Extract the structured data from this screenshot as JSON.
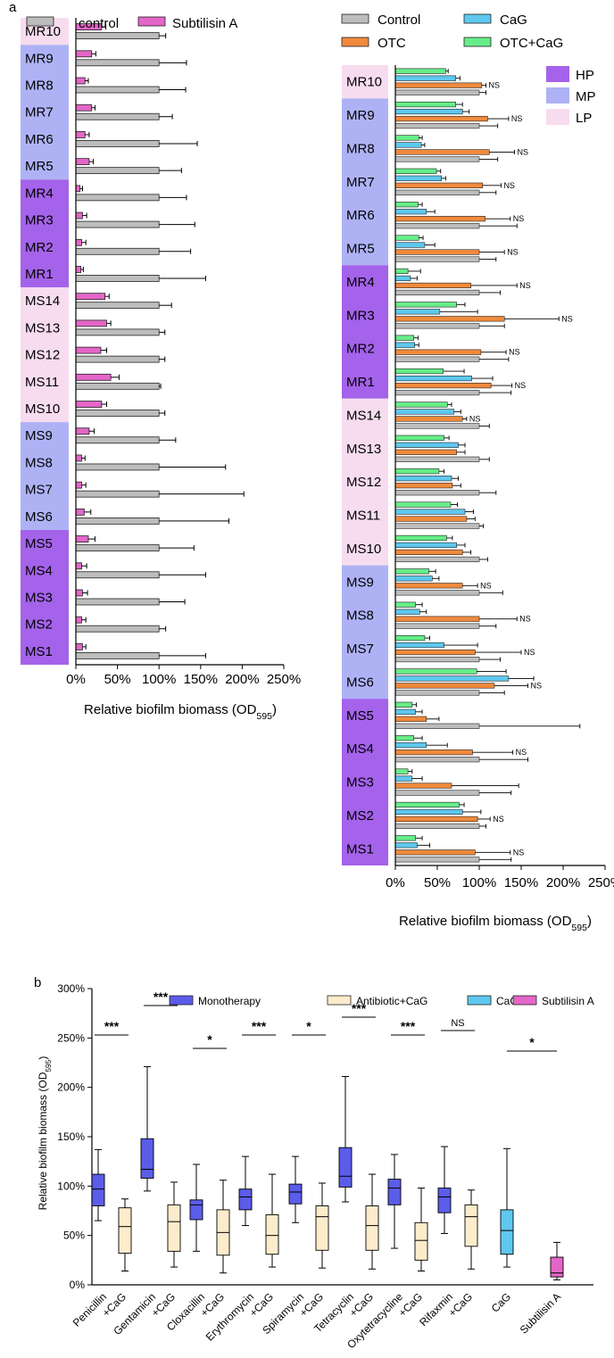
{
  "panel_labels": {
    "a": "a",
    "b": "b"
  },
  "colors": {
    "control_gray": "#bdbdbd",
    "subtilisin_pink": "#e466c8",
    "otc_orange": "#f08a3c",
    "cag_blue": "#5ec8ee",
    "otccag_green": "#66ee88",
    "HP": "#a463ea",
    "MP": "#aeb2f5",
    "LP": "#f7dcef",
    "mono_box": "#5b5ce8",
    "combo_box": "#fdeccb"
  },
  "chart_data": [
    {
      "id": "a-left",
      "type": "bar",
      "orientation": "horizontal",
      "legend": [
        "control",
        "Subtilisin A"
      ],
      "legend_placement": "top",
      "categories": [
        "MR10",
        "MR9",
        "MR8",
        "MR7",
        "MR6",
        "MR5",
        "MR4",
        "MR3",
        "MR2",
        "MR1",
        "MS14",
        "MS13",
        "MS12",
        "MS11",
        "MS10",
        "MS9",
        "MS8",
        "MS7",
        "MS6",
        "MS5",
        "MS4",
        "MS3",
        "MS2",
        "MS1"
      ],
      "groups": [
        "LP",
        "MP",
        "MP",
        "MP",
        "MP",
        "MP",
        "HP",
        "HP",
        "HP",
        "HP",
        "LP",
        "LP",
        "LP",
        "LP",
        "LP",
        "MP",
        "MP",
        "MP",
        "MP",
        "HP",
        "HP",
        "HP",
        "HP",
        "HP"
      ],
      "series": [
        {
          "name": "control",
          "values": [
            100,
            100,
            100,
            100,
            100,
            100,
            100,
            100,
            100,
            100,
            100,
            100,
            100,
            100,
            100,
            100,
            100,
            100,
            100,
            100,
            100,
            100,
            100,
            100
          ],
          "errors": [
            8,
            33,
            32,
            16,
            46,
            27,
            33,
            43,
            38,
            56,
            15,
            7,
            7,
            2,
            7,
            20,
            80,
            102,
            84,
            42,
            56,
            31,
            8,
            56
          ]
        },
        {
          "name": "Subtilisin A",
          "values": [
            31,
            19,
            11,
            19,
            11,
            16,
            5,
            8,
            7,
            6,
            35,
            37,
            30,
            42,
            31,
            16,
            7,
            7,
            10,
            15,
            7,
            8,
            7,
            8
          ],
          "errors": [
            5,
            5,
            4,
            4,
            5,
            5,
            3,
            5,
            5,
            3,
            5,
            5,
            7,
            10,
            6,
            6,
            4,
            5,
            8,
            8,
            6,
            6,
            5,
            4
          ]
        }
      ],
      "xlabel": "Relative biofilm biomass (OD",
      "xlabel_sub": "595",
      "xlabel_end": ")",
      "xticks": [
        "0%",
        "50%",
        "100%",
        "150%",
        "200%",
        "250%"
      ],
      "xlim": [
        0,
        250
      ]
    },
    {
      "id": "a-right",
      "type": "bar",
      "orientation": "horizontal",
      "legend": [
        "Control",
        "CaG",
        "OTC",
        "OTC+CaG"
      ],
      "group_legend": [
        "HP",
        "MP",
        "LP"
      ],
      "categories": [
        "MR10",
        "MR9",
        "MR8",
        "MR7",
        "MR6",
        "MR5",
        "MR4",
        "MR3",
        "MR2",
        "MR1",
        "MS14",
        "MS13",
        "MS12",
        "MS11",
        "MS10",
        "MS9",
        "MS8",
        "MS7",
        "MS6",
        "MS5",
        "MS4",
        "MS3",
        "MS2",
        "MS1"
      ],
      "groups": [
        "LP",
        "MP",
        "MP",
        "MP",
        "MP",
        "MP",
        "HP",
        "HP",
        "HP",
        "HP",
        "LP",
        "LP",
        "LP",
        "LP",
        "LP",
        "MP",
        "MP",
        "MP",
        "MP",
        "HP",
        "HP",
        "HP",
        "HP",
        "HP"
      ],
      "series": [
        {
          "name": "Control",
          "values": [
            100,
            100,
            100,
            100,
            100,
            100,
            100,
            100,
            100,
            100,
            100,
            100,
            100,
            100,
            100,
            100,
            100,
            100,
            100,
            100,
            100,
            100,
            100,
            100
          ],
          "errors": [
            8,
            22,
            22,
            20,
            45,
            20,
            25,
            30,
            35,
            38,
            12,
            12,
            20,
            5,
            10,
            28,
            20,
            25,
            30,
            120,
            58,
            38,
            8,
            38
          ]
        },
        {
          "name": "OTC",
          "values": [
            103,
            110,
            112,
            104,
            107,
            100,
            90,
            130,
            102,
            114,
            80,
            73,
            68,
            85,
            80,
            80,
            100,
            95,
            118,
            37,
            92,
            67,
            98,
            95
          ],
          "errors": [
            5,
            25,
            30,
            22,
            30,
            30,
            55,
            65,
            30,
            25,
            5,
            10,
            10,
            10,
            10,
            18,
            45,
            55,
            40,
            15,
            48,
            80,
            15,
            42
          ]
        },
        {
          "name": "CaG",
          "values": [
            72,
            80,
            31,
            55,
            37,
            35,
            18,
            53,
            23,
            91,
            70,
            75,
            67,
            83,
            73,
            44,
            29,
            58,
            135,
            24,
            37,
            20,
            80,
            26
          ],
          "errors": [
            5,
            8,
            4,
            5,
            10,
            12,
            8,
            45,
            5,
            25,
            8,
            8,
            8,
            10,
            10,
            8,
            8,
            40,
            30,
            8,
            25,
            12,
            22,
            15
          ]
        },
        {
          "name": "OTC+CaG",
          "values": [
            60,
            72,
            28,
            49,
            27,
            28,
            15,
            73,
            22,
            57,
            62,
            58,
            52,
            66,
            61,
            40,
            24,
            35,
            97,
            20,
            22,
            15,
            76,
            24
          ],
          "errors": [
            3,
            8,
            4,
            5,
            5,
            5,
            15,
            10,
            5,
            25,
            5,
            6,
            6,
            8,
            7,
            8,
            8,
            6,
            35,
            5,
            10,
            5,
            6,
            8
          ]
        }
      ],
      "annotation": "NS",
      "ns_rows": [
        "MR10",
        "MR9",
        "MR8",
        "MR7",
        "MR6",
        "MR5",
        "MR4",
        "MR3",
        "MR2",
        "MR1",
        "MS14",
        "MS9",
        "MS8",
        "MS7",
        "MS6",
        "MS4",
        "MS2",
        "MS1"
      ],
      "xlabel": "Relative biofilm biomass (OD",
      "xlabel_sub": "595",
      "xlabel_end": ")",
      "xticks": [
        "0%",
        "50%",
        "100%",
        "150%",
        "200%",
        "250%"
      ],
      "xlim": [
        0,
        250
      ]
    },
    {
      "id": "b",
      "type": "box",
      "legend": [
        "Monotherapy",
        "Antibiotic+CaG",
        "CaG",
        "Subtilisin A"
      ],
      "legend_placement": "top",
      "ylabel": "Relative biofilm biomass (OD",
      "ylabel_sub": "595",
      "ylabel_end": ")",
      "yticks": [
        "0%",
        "50%",
        "100%",
        "150%",
        "200%",
        "250%",
        "300%"
      ],
      "ylim": [
        0,
        300
      ],
      "categories": [
        {
          "line1": "Penicillin",
          "line2": "+CaG",
          "sig": "***"
        },
        {
          "line1": "Gentamicin",
          "line2": "+CaG",
          "sig": "***"
        },
        {
          "line1": "Cloxacillin",
          "line2": "+CaG",
          "sig": "*"
        },
        {
          "line1": "Erythromycin",
          "line2": "+CaG",
          "sig": "***"
        },
        {
          "line1": "Spiramycin",
          "line2": "+CaG",
          "sig": "*"
        },
        {
          "line1": "Tetracyclin",
          "line2": "+CaG",
          "sig": "***"
        },
        {
          "line1": "Oxytetracycline",
          "line2": "+CaG",
          "sig": "***"
        },
        {
          "line1": "Rifaxmin",
          "line2": "+CaG",
          "sig": "NS"
        },
        {
          "line1": "CaG",
          "line2": "",
          "sig": ""
        },
        {
          "line1": "Subtilisin A",
          "line2": "",
          "sig": "*"
        }
      ],
      "boxes": [
        {
          "group": 0,
          "series": "Monotherapy",
          "min": 65,
          "q1": 80,
          "median": 97,
          "q3": 112,
          "max": 137
        },
        {
          "group": 0,
          "series": "Antibiotic+CaG",
          "min": 14,
          "q1": 32,
          "median": 59,
          "q3": 78,
          "max": 87
        },
        {
          "group": 1,
          "series": "Monotherapy",
          "min": 95,
          "q1": 108,
          "median": 117,
          "q3": 148,
          "max": 221
        },
        {
          "group": 1,
          "series": "Antibiotic+CaG",
          "min": 18,
          "q1": 34,
          "median": 64,
          "q3": 81,
          "max": 104
        },
        {
          "group": 2,
          "series": "Monotherapy",
          "min": 34,
          "q1": 66,
          "median": 81,
          "q3": 86,
          "max": 122
        },
        {
          "group": 2,
          "series": "Antibiotic+CaG",
          "min": 12,
          "q1": 30,
          "median": 53,
          "q3": 76,
          "max": 106
        },
        {
          "group": 3,
          "series": "Monotherapy",
          "min": 60,
          "q1": 76,
          "median": 89,
          "q3": 97,
          "max": 130
        },
        {
          "group": 3,
          "series": "Antibiotic+CaG",
          "min": 18,
          "q1": 31,
          "median": 50,
          "q3": 71,
          "max": 112
        },
        {
          "group": 4,
          "series": "Monotherapy",
          "min": 63,
          "q1": 82,
          "median": 94,
          "q3": 102,
          "max": 130
        },
        {
          "group": 4,
          "series": "Antibiotic+CaG",
          "min": 17,
          "q1": 35,
          "median": 69,
          "q3": 80,
          "max": 103
        },
        {
          "group": 5,
          "series": "Monotherapy",
          "min": 84,
          "q1": 99,
          "median": 110,
          "q3": 139,
          "max": 211
        },
        {
          "group": 5,
          "series": "Antibiotic+CaG",
          "min": 16,
          "q1": 35,
          "median": 60,
          "q3": 80,
          "max": 112
        },
        {
          "group": 6,
          "series": "Monotherapy",
          "min": 37,
          "q1": 81,
          "median": 98,
          "q3": 107,
          "max": 132
        },
        {
          "group": 6,
          "series": "Antibiotic+CaG",
          "min": 14,
          "q1": 25,
          "median": 45,
          "q3": 63,
          "max": 98
        },
        {
          "group": 7,
          "series": "Monotherapy",
          "min": 52,
          "q1": 73,
          "median": 89,
          "q3": 98,
          "max": 140
        },
        {
          "group": 7,
          "series": "Antibiotic+CaG",
          "min": 16,
          "q1": 39,
          "median": 69,
          "q3": 81,
          "max": 96
        },
        {
          "group": 8,
          "series": "CaG",
          "min": 18,
          "q1": 31,
          "median": 55,
          "q3": 76,
          "max": 138
        },
        {
          "group": 9,
          "series": "Subtilisin A",
          "min": 5,
          "q1": 8,
          "median": 12,
          "q3": 28,
          "max": 43
        }
      ]
    }
  ]
}
